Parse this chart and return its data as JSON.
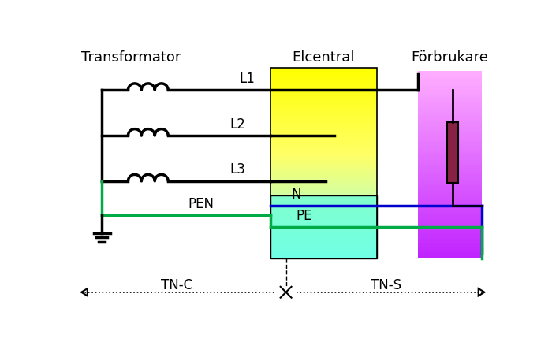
{
  "title_transformator": "Transformator",
  "title_elcentral": "Elcentral",
  "title_forbrukare": "Förbrukare",
  "label_L1": "L1",
  "label_L2": "L2",
  "label_L3": "L3",
  "label_PEN": "PEN",
  "label_N": "N",
  "label_PE": "PE",
  "label_TNC": "TN-C",
  "label_TNS": "TN-S",
  "bg_color": "#ffffff",
  "line_color": "#000000",
  "green_color": "#00aa44",
  "blue_color": "#0000cc",
  "resistor_color": "#882244"
}
